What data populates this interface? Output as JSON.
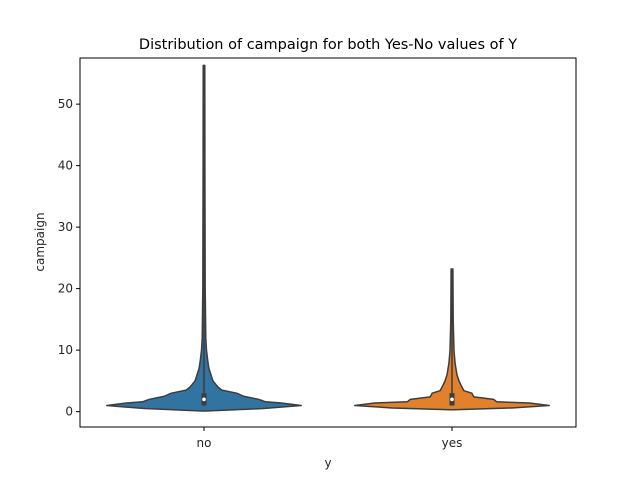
{
  "chart_data": {
    "type": "violin",
    "title": "Distribution of campaign for both Yes-No values of Y",
    "xlabel": "y",
    "ylabel": "campaign",
    "categories": [
      "no",
      "yes"
    ],
    "ylim": [
      -2.5,
      57.5
    ],
    "yticks": [
      0,
      10,
      20,
      30,
      40,
      50
    ],
    "ytick_labels": [
      "0",
      "10",
      "20",
      "30",
      "40",
      "50"
    ],
    "series": [
      {
        "name": "no",
        "color": "#3274a1",
        "min": 1,
        "max": 56,
        "q1": 1,
        "median": 2,
        "q3": 3,
        "profile": [
          [
            0.1,
            0.02
          ],
          [
            0.5,
            0.6
          ],
          [
            1.0,
            0.98
          ],
          [
            1.4,
            0.78
          ],
          [
            1.6,
            0.62
          ],
          [
            2.0,
            0.55
          ],
          [
            2.5,
            0.4
          ],
          [
            3.0,
            0.33
          ],
          [
            3.5,
            0.18
          ],
          [
            4.0,
            0.14
          ],
          [
            5.0,
            0.09
          ],
          [
            6.0,
            0.07
          ],
          [
            7.0,
            0.05
          ],
          [
            8.0,
            0.04
          ],
          [
            10.0,
            0.025
          ],
          [
            12.0,
            0.018
          ],
          [
            20.0,
            0.012
          ],
          [
            40.0,
            0.009
          ],
          [
            56.3,
            0.008
          ]
        ]
      },
      {
        "name": "yes",
        "color": "#e1812c",
        "min": 1,
        "max": 23,
        "q1": 1,
        "median": 2,
        "q3": 3,
        "profile": [
          [
            0.3,
            0.02
          ],
          [
            0.6,
            0.6
          ],
          [
            1.0,
            0.98
          ],
          [
            1.4,
            0.78
          ],
          [
            1.6,
            0.45
          ],
          [
            2.0,
            0.42
          ],
          [
            2.4,
            0.22
          ],
          [
            3.0,
            0.2
          ],
          [
            3.4,
            0.12
          ],
          [
            4.0,
            0.1
          ],
          [
            5.0,
            0.07
          ],
          [
            6.0,
            0.05
          ],
          [
            7.0,
            0.04
          ],
          [
            8.0,
            0.03
          ],
          [
            10.0,
            0.02
          ],
          [
            15.0,
            0.012
          ],
          [
            23.2,
            0.009
          ]
        ]
      }
    ],
    "colors": {
      "no": "#3274a1",
      "yes": "#e1812c",
      "edge": "#3d3d3d",
      "box": "#3d3d3d",
      "median": "#ffffff"
    }
  }
}
